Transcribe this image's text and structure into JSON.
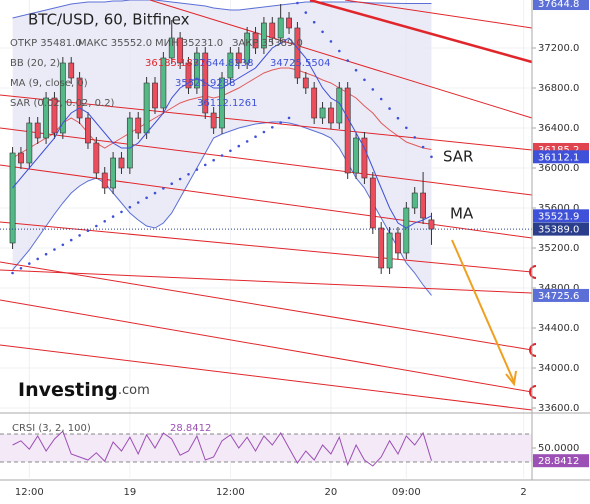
{
  "chart_data": {
    "type": "candlestick",
    "title": "BTC/USD, 60, Bitfinex",
    "legend_lines": [
      [
        "ОТКР 35481.0",
        "МАКС 35552.0",
        "МИН 35231.0",
        "ЗАКР 35389.0"
      ],
      [
        "BB (20, 2)",
        "36185.1871",
        "37644.8238",
        "34725.5504"
      ],
      [
        "MA (9, close, 0)",
        "35521.9288"
      ],
      [
        "SAR (0.02, 0.02, 0.2)",
        "36112.1261"
      ]
    ],
    "up_color": "#53b987",
    "down_color": "#eb4d5c",
    "open": [
      35250,
      36150,
      36050,
      36450,
      36300,
      36700,
      36350,
      37050,
      36900,
      36500,
      36250,
      35950,
      35800,
      36100,
      36000,
      36500,
      36350,
      36850,
      36600,
      37100,
      37300,
      37050,
      36800,
      37150,
      36550,
      36400,
      36900,
      37150,
      37050,
      37350,
      37200,
      37450,
      37300,
      37500,
      37400,
      36900,
      36800,
      36500,
      36600,
      36450,
      36800,
      35950,
      36300,
      35900,
      35400,
      35000,
      35350,
      35150,
      35600,
      35750,
      35481
    ],
    "high": [
      36210,
      36210,
      36510,
      36510,
      36760,
      36760,
      37110,
      37110,
      36960,
      36560,
      36310,
      36010,
      36160,
      36160,
      36560,
      36560,
      36910,
      36910,
      37160,
      37480,
      37360,
      37110,
      37210,
      37210,
      36610,
      36960,
      37210,
      37210,
      37410,
      37410,
      37510,
      37510,
      37640,
      37560,
      37460,
      36960,
      36860,
      36660,
      36660,
      36860,
      36860,
      36360,
      36360,
      35960,
      35460,
      35410,
      35410,
      35660,
      35810,
      35960,
      35552
    ],
    "low": [
      35190,
      35990,
      35990,
      36240,
      36240,
      36290,
      36290,
      36840,
      36440,
      36190,
      35890,
      35740,
      35740,
      35940,
      35940,
      36290,
      36290,
      36540,
      36540,
      37040,
      36990,
      36740,
      36740,
      36490,
      36340,
      36340,
      36840,
      36990,
      36990,
      37140,
      37140,
      37240,
      37240,
      37340,
      36840,
      36740,
      36440,
      36440,
      36390,
      36390,
      35890,
      35890,
      35840,
      35340,
      34940,
      34940,
      35090,
      35090,
      35540,
      35440,
      35231
    ],
    "close": [
      36150,
      36050,
      36450,
      36300,
      36700,
      36350,
      37050,
      36900,
      36500,
      36250,
      35950,
      35800,
      36100,
      36000,
      36500,
      36350,
      36850,
      36600,
      37100,
      37300,
      37050,
      36800,
      37150,
      36550,
      36400,
      36900,
      37150,
      37050,
      37350,
      37200,
      37450,
      37300,
      37500,
      37400,
      36900,
      36800,
      36500,
      36600,
      36450,
      36800,
      35950,
      36300,
      35900,
      35400,
      35000,
      35350,
      35150,
      35600,
      35750,
      35500,
      35389
    ],
    "bb": {
      "color": "#5b6fd6",
      "middle_color": "#e05a5a",
      "fill": "#e6e6f5",
      "upper": [
        37500,
        37520,
        37540,
        37560,
        37580,
        37600,
        37620,
        37640,
        37650,
        37660,
        37660,
        37660,
        37670,
        37670,
        37680,
        37680,
        37680,
        37680,
        37670,
        37660,
        37650,
        37640,
        37630,
        37620,
        37600,
        37590,
        37580,
        37580,
        37590,
        37600,
        37610,
        37620,
        37630,
        37640,
        37650,
        37660,
        37660,
        37660,
        37660,
        37660,
        37660,
        37660,
        37655,
        37650,
        37650,
        37648,
        37646,
        37645,
        37645,
        37645,
        37644.8238
      ],
      "middle": [
        36100,
        36150,
        36200,
        36250,
        36300,
        36350,
        36450,
        36500,
        36450,
        36350,
        36250,
        36200,
        36250,
        36300,
        36350,
        36400,
        36450,
        36500,
        36550,
        36600,
        36650,
        36680,
        36700,
        36720,
        36700,
        36720,
        36760,
        36800,
        36850,
        36900,
        36950,
        36980,
        37000,
        37000,
        36980,
        36950,
        36920,
        36880,
        36850,
        36800,
        36750,
        36700,
        36620,
        36550,
        36450,
        36380,
        36320,
        36260,
        36230,
        36200,
        36185.1871
      ],
      "lower": [
        34980,
        35080,
        35180,
        35300,
        35420,
        35540,
        35650,
        35750,
        35820,
        35870,
        35900,
        35850,
        35750,
        35650,
        35550,
        35480,
        35420,
        35400,
        35450,
        35550,
        35700,
        35850,
        36000,
        36150,
        36300,
        36340,
        36370,
        36400,
        36420,
        36440,
        36450,
        36460,
        36460,
        36450,
        36430,
        36400,
        36370,
        36340,
        36300,
        36200,
        36050,
        35900,
        35800,
        35650,
        35500,
        35350,
        35200,
        35050,
        34950,
        34830,
        34725.5504
      ]
    },
    "ma": {
      "color": "#3f51d8",
      "values": [
        35800,
        35900,
        36000,
        36100,
        36200,
        36300,
        36450,
        36550,
        36600,
        36550,
        36450,
        36350,
        36250,
        36200,
        36200,
        36250,
        36350,
        36450,
        36550,
        36700,
        36800,
        36850,
        36900,
        36850,
        36800,
        36800,
        36850,
        36900,
        36950,
        37000,
        37100,
        37200,
        37250,
        37300,
        37200,
        37100,
        36950,
        36800,
        36700,
        36650,
        36500,
        36350,
        36200,
        36000,
        35800,
        35600,
        35450,
        35400,
        35450,
        35480,
        35521.9288
      ]
    },
    "sar": {
      "color": "#3f51d8",
      "values": [
        34950,
        34997,
        35044,
        35091,
        35138,
        35185,
        35232,
        35279,
        35326,
        35373,
        35420,
        35467,
        35514,
        35561,
        35608,
        35655,
        35702,
        35749,
        35796,
        35843,
        35890,
        35937,
        35984,
        36031,
        36078,
        36125,
        36172,
        36219,
        36266,
        36313,
        36360,
        36407,
        36454,
        36501,
        37650,
        37554,
        37458,
        37362,
        37266,
        37170,
        37074,
        36978,
        36882,
        36786,
        36690,
        36594,
        36498,
        36402,
        36306,
        36210,
        36112.1261
      ]
    },
    "ylim": [
      33580,
      37680
    ],
    "yticks": [
      {
        "value": 33600,
        "label": "33600.0"
      },
      {
        "value": 34000,
        "label": "34000.0"
      },
      {
        "value": 34400,
        "label": "34400.0"
      },
      {
        "value": 34800,
        "label": "34800.0"
      },
      {
        "value": 35200,
        "label": "35200.0"
      },
      {
        "value": 35600,
        "label": "35600.0"
      },
      {
        "value": 36000,
        "label": "36000.0"
      },
      {
        "value": 36400,
        "label": "36400.0"
      },
      {
        "value": 36800,
        "label": "36800.0"
      },
      {
        "value": 37200,
        "label": "37200.0"
      }
    ],
    "badges": [
      {
        "value": 37644.8,
        "label": "37644.8",
        "color": "#5b6fd6"
      },
      {
        "value": 36185.2,
        "label": "36185.2",
        "color": "#e0454f"
      },
      {
        "value": 36112.1,
        "label": "36112.1",
        "color": "#3f51d8"
      },
      {
        "value": 35521.9,
        "label": "35521.9",
        "color": "#3f51d8"
      },
      {
        "value": 35389.0,
        "label": "35389.0",
        "color": "#2a3e8c"
      },
      {
        "value": 34725.6,
        "label": "34725.6",
        "color": "#5b6fd6"
      }
    ],
    "xlim": [
      -1.5,
      62
    ],
    "xticks": [
      {
        "value": 2,
        "label": "12:00"
      },
      {
        "value": 14,
        "label": "19"
      },
      {
        "value": 26,
        "label": "12:00"
      },
      {
        "value": 38,
        "label": "20"
      },
      {
        "value": 47,
        "label": "09:00"
      },
      {
        "value": 61,
        "label": "2"
      }
    ],
    "annotations": [
      "SAR",
      "MA"
    ],
    "logo": [
      "Investing",
      ".com"
    ],
    "oscillator": {
      "name": "CRSI (3, 2, 100)",
      "value_label": "28.8412",
      "color": "#9c4fb5",
      "values": [
        55,
        62,
        48,
        70,
        45,
        65,
        78,
        40,
        35,
        30,
        42,
        28,
        60,
        45,
        68,
        40,
        72,
        50,
        75,
        65,
        38,
        45,
        70,
        30,
        35,
        62,
        72,
        50,
        68,
        45,
        70,
        55,
        75,
        50,
        25,
        45,
        30,
        55,
        40,
        68,
        22,
        55,
        30,
        20,
        35,
        62,
        40,
        70,
        55,
        75,
        28.8412
      ],
      "ylim": [
        0,
        100
      ],
      "yticks": [
        {
          "value": 50,
          "label": "50.0000"
        }
      ]
    }
  }
}
